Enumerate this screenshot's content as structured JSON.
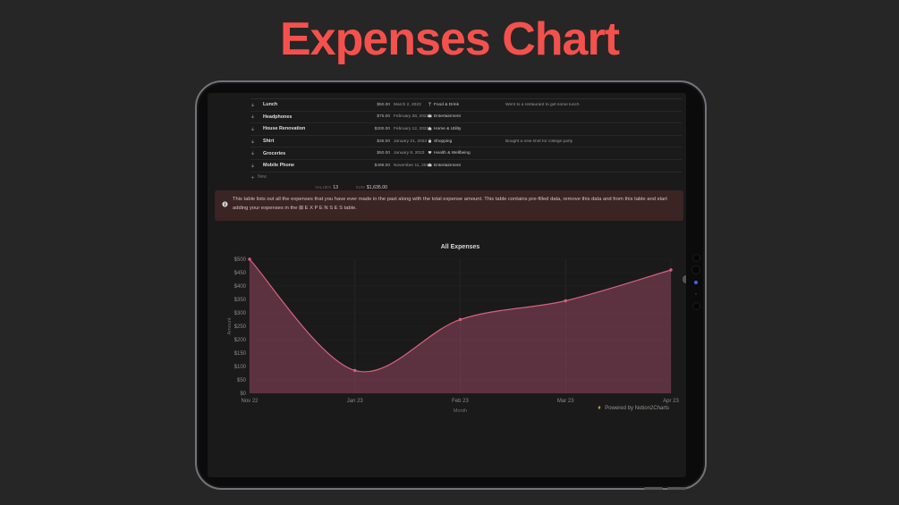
{
  "page": {
    "title": "Expenses Chart",
    "title_color": "#f4514d",
    "background_color": "#262626"
  },
  "table": {
    "rows": [
      {
        "row_icon": "down-arrow-icon",
        "name": "Lunch",
        "amount": "$50.00",
        "date": "March 2, 2023",
        "category_icon": "fork-icon",
        "category": "Food & Drink",
        "note": "Went to a restaurant to get some lunch"
      },
      {
        "row_icon": "down-arrow-icon",
        "name": "Headphones",
        "amount": "$75.00",
        "date": "February 28, 2023",
        "category_icon": "tv-icon",
        "category": "Entertainment",
        "note": ""
      },
      {
        "row_icon": "down-arrow-icon",
        "name": "House Renovation",
        "amount": "$200.00",
        "date": "February 12, 2023",
        "category_icon": "house-icon",
        "category": "Home & Utility",
        "note": ""
      },
      {
        "row_icon": "down-arrow-icon",
        "name": "Shirt",
        "amount": "$35.00",
        "date": "January 21, 2023",
        "category_icon": "shopping-bag-icon",
        "category": "Shopping",
        "note": "Bought a new shirt for college party"
      },
      {
        "row_icon": "down-arrow-icon",
        "name": "Groceries",
        "amount": "$50.00",
        "date": "January 8, 2023",
        "category_icon": "hand-heart-icon",
        "category": "Health & Wellbeing",
        "note": ""
      },
      {
        "row_icon": "down-arrow-icon",
        "name": "Mobile Phone",
        "amount": "$499.00",
        "date": "November 11, 2022",
        "category_icon": "tv-icon",
        "category": "Entertainment",
        "note": ""
      }
    ],
    "new_row_label": "New",
    "aggregates": {
      "count_label": "VALUES",
      "count": "13",
      "sum_label": "SUM",
      "sum": "$1,635.00"
    }
  },
  "callout": {
    "icon": "info-icon",
    "text": "This table lists out all the expenses that you have ever made in the past along with the total expense amount. This table contains pre-filled data, remove this data and from this table and start adding your expenses in the ⊞ E X P E N S E S  table."
  },
  "chart_data": {
    "type": "area",
    "title": "All Expenses",
    "xlabel": "Month",
    "ylabel": "Amount",
    "categories": [
      "Nov 22",
      "Jan 23",
      "Feb 23",
      "Mar 23",
      "Apr 23"
    ],
    "values": [
      500,
      85,
      275,
      345,
      460
    ],
    "ylim": [
      0,
      500
    ],
    "ytick_step": 50,
    "ytick_prefix": "$",
    "grid": true,
    "legend": false,
    "smooth": true,
    "markers": true,
    "line_color": "#d4627f",
    "fill_color": "rgba(212,93,132,0.36)"
  },
  "footer": {
    "icon": "bolt-icon",
    "text": "Powered by Notion2Charts"
  }
}
